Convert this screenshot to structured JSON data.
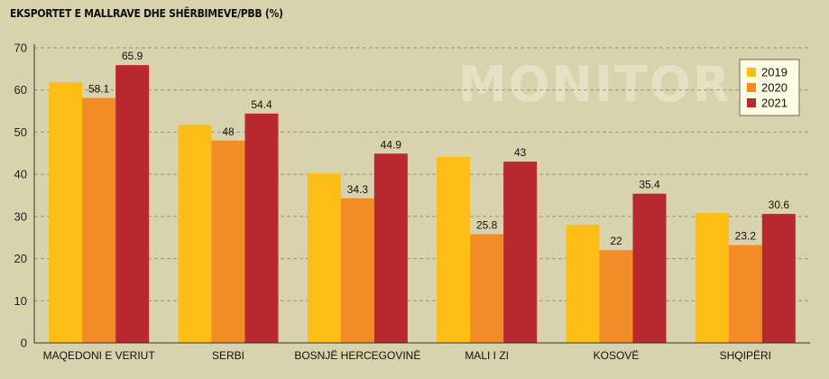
{
  "title": "EKSPORTET E MALLRAVE DHE SHËRBIMEVE/PBB (%)",
  "watermark": "MONITOR.al",
  "chart_data": {
    "type": "bar",
    "title": "EKSPORTET E MALLRAVE DHE SHËRBIMEVE/PBB (%)",
    "xlabel": "",
    "ylabel": "",
    "categories": [
      "MAQEDONI E VERIUT",
      "SERBI",
      "BOSNJË HERCEGOVINË",
      "MALI I ZI",
      "KOSOVË",
      "SHQIPËRI"
    ],
    "series": [
      {
        "name": "2019",
        "color": "#fbbd16",
        "values": [
          61.8,
          51.7,
          40.2,
          44.1,
          28.0,
          30.8
        ],
        "labels": [
          "",
          "",
          "",
          "",
          "",
          ""
        ]
      },
      {
        "name": "2020",
        "color": "#f28c26",
        "values": [
          58.1,
          48,
          34.3,
          25.8,
          22,
          23.2
        ],
        "labels": [
          "58.1",
          "48",
          "34.3",
          "25.8",
          "22",
          "23.2"
        ]
      },
      {
        "name": "2021",
        "color": "#b8282f",
        "values": [
          65.9,
          54.4,
          44.9,
          43,
          35.4,
          30.6
        ],
        "labels": [
          "65.9",
          "54.4",
          "44.9",
          "43",
          "35.4",
          "30.6"
        ]
      }
    ],
    "ylim": [
      0,
      70
    ],
    "yticks": [
      0,
      10,
      20,
      30,
      40,
      50,
      60,
      70
    ],
    "ytick_labels": [
      "0",
      "10",
      "20",
      "30",
      "40",
      "50",
      "60",
      "70"
    ],
    "grid": true,
    "legend_position": "top-right"
  }
}
